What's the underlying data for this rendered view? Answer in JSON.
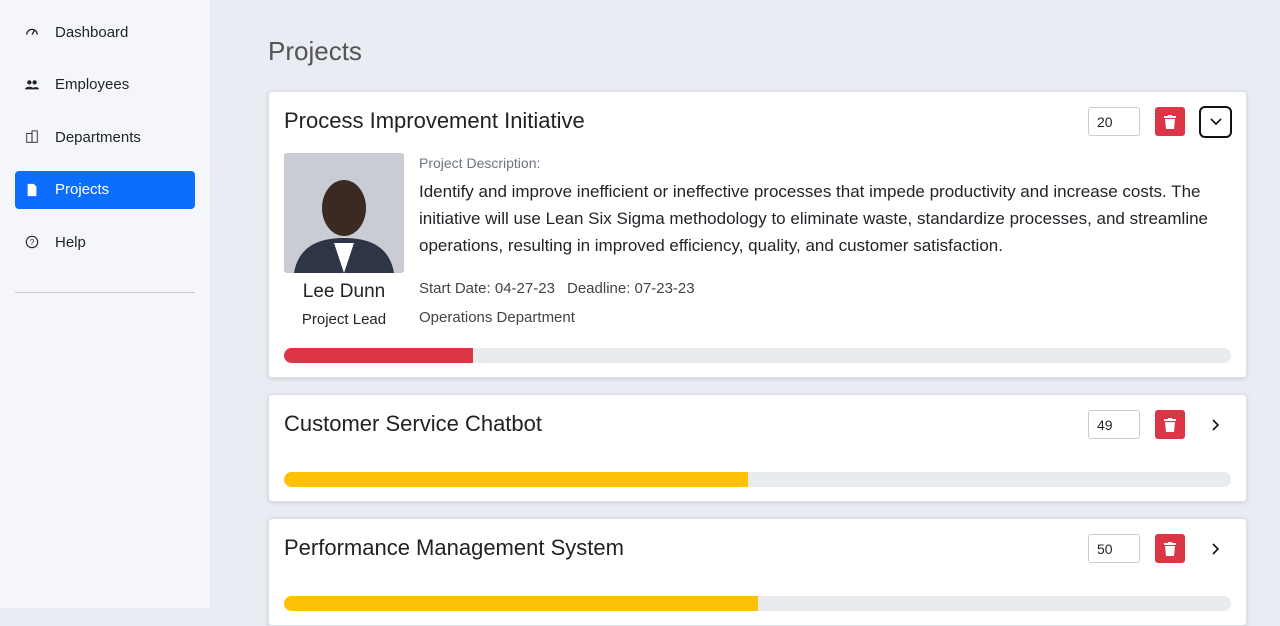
{
  "sidebar": {
    "items": [
      {
        "label": "Dashboard",
        "icon": "gauge",
        "active": false
      },
      {
        "label": "Employees",
        "icon": "people",
        "active": false
      },
      {
        "label": "Departments",
        "icon": "building",
        "active": false
      },
      {
        "label": "Projects",
        "icon": "file",
        "active": true
      },
      {
        "label": "Help",
        "icon": "help",
        "active": false
      }
    ]
  },
  "header": {
    "title": "Projects"
  },
  "projects": [
    {
      "name": "Process Improvement Initiative",
      "progress": 20,
      "color": "#dc3545",
      "expanded": true,
      "lead": {
        "name": "Lee Dunn",
        "role": "Project Lead"
      },
      "description_label": "Project Description:",
      "description": "Identify and improve inefficient or ineffective processes that impede productivity and increase costs. The initiative will use Lean Six Sigma methodology to eliminate waste, standardize processes, and streamline operations, resulting in improved efficiency, quality, and customer satisfaction.",
      "start_date": "Start Date: 04-27-23",
      "deadline": "Deadline: 07-23-23",
      "department": "Operations Department"
    },
    {
      "name": "Customer Service Chatbot",
      "progress": 49,
      "color": "#ffc107",
      "expanded": false
    },
    {
      "name": "Performance Management System",
      "progress": 50,
      "color": "#ffc107",
      "expanded": false
    }
  ]
}
